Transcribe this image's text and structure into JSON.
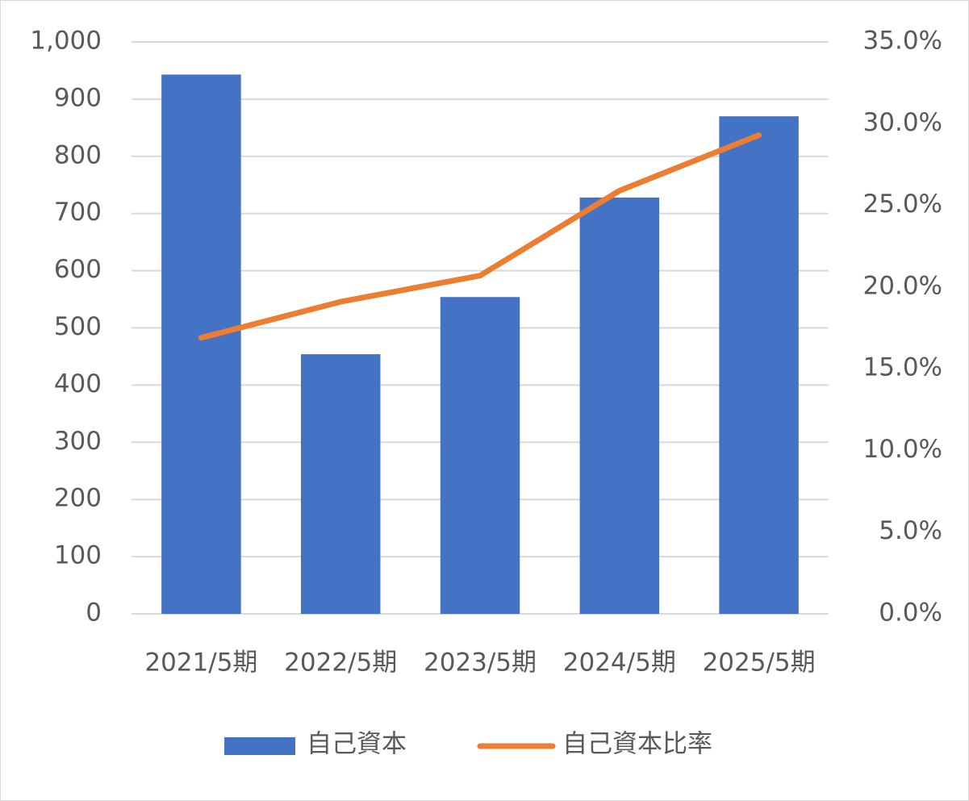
{
  "chart_data": {
    "type": "bar",
    "categories": [
      "2021/5期",
      "2022/5期",
      "2023/5期",
      "2024/5期",
      "2025/5期"
    ],
    "series": [
      {
        "name": "自己資本",
        "type": "bar",
        "color": "#4472c4",
        "values": [
          943,
          454,
          554,
          728,
          870
        ]
      },
      {
        "name": "自己資本比率",
        "type": "line",
        "axis": "y2",
        "color": "#ed7d31",
        "values": [
          16.9,
          19.1,
          20.7,
          25.9,
          29.3
        ]
      }
    ],
    "ylim": [
      0,
      1000
    ],
    "yticks": [
      0,
      100,
      200,
      300,
      400,
      500,
      600,
      700,
      800,
      900,
      {
        "value": 1000,
        "label": "1,000"
      }
    ],
    "y2lim": [
      0,
      35
    ],
    "y2ticks": [
      {
        "value": 0,
        "label": "0.0%"
      },
      {
        "value": 5,
        "label": "5.0%"
      },
      {
        "value": 10,
        "label": "10.0%"
      },
      {
        "value": 15,
        "label": "15.0%"
      },
      {
        "value": 20,
        "label": "20.0%"
      },
      {
        "value": 25,
        "label": "25.0%"
      },
      {
        "value": 30,
        "label": "30.0%"
      },
      {
        "value": 35,
        "label": "35.0%"
      }
    ],
    "grid": true,
    "legend": "bottom"
  }
}
